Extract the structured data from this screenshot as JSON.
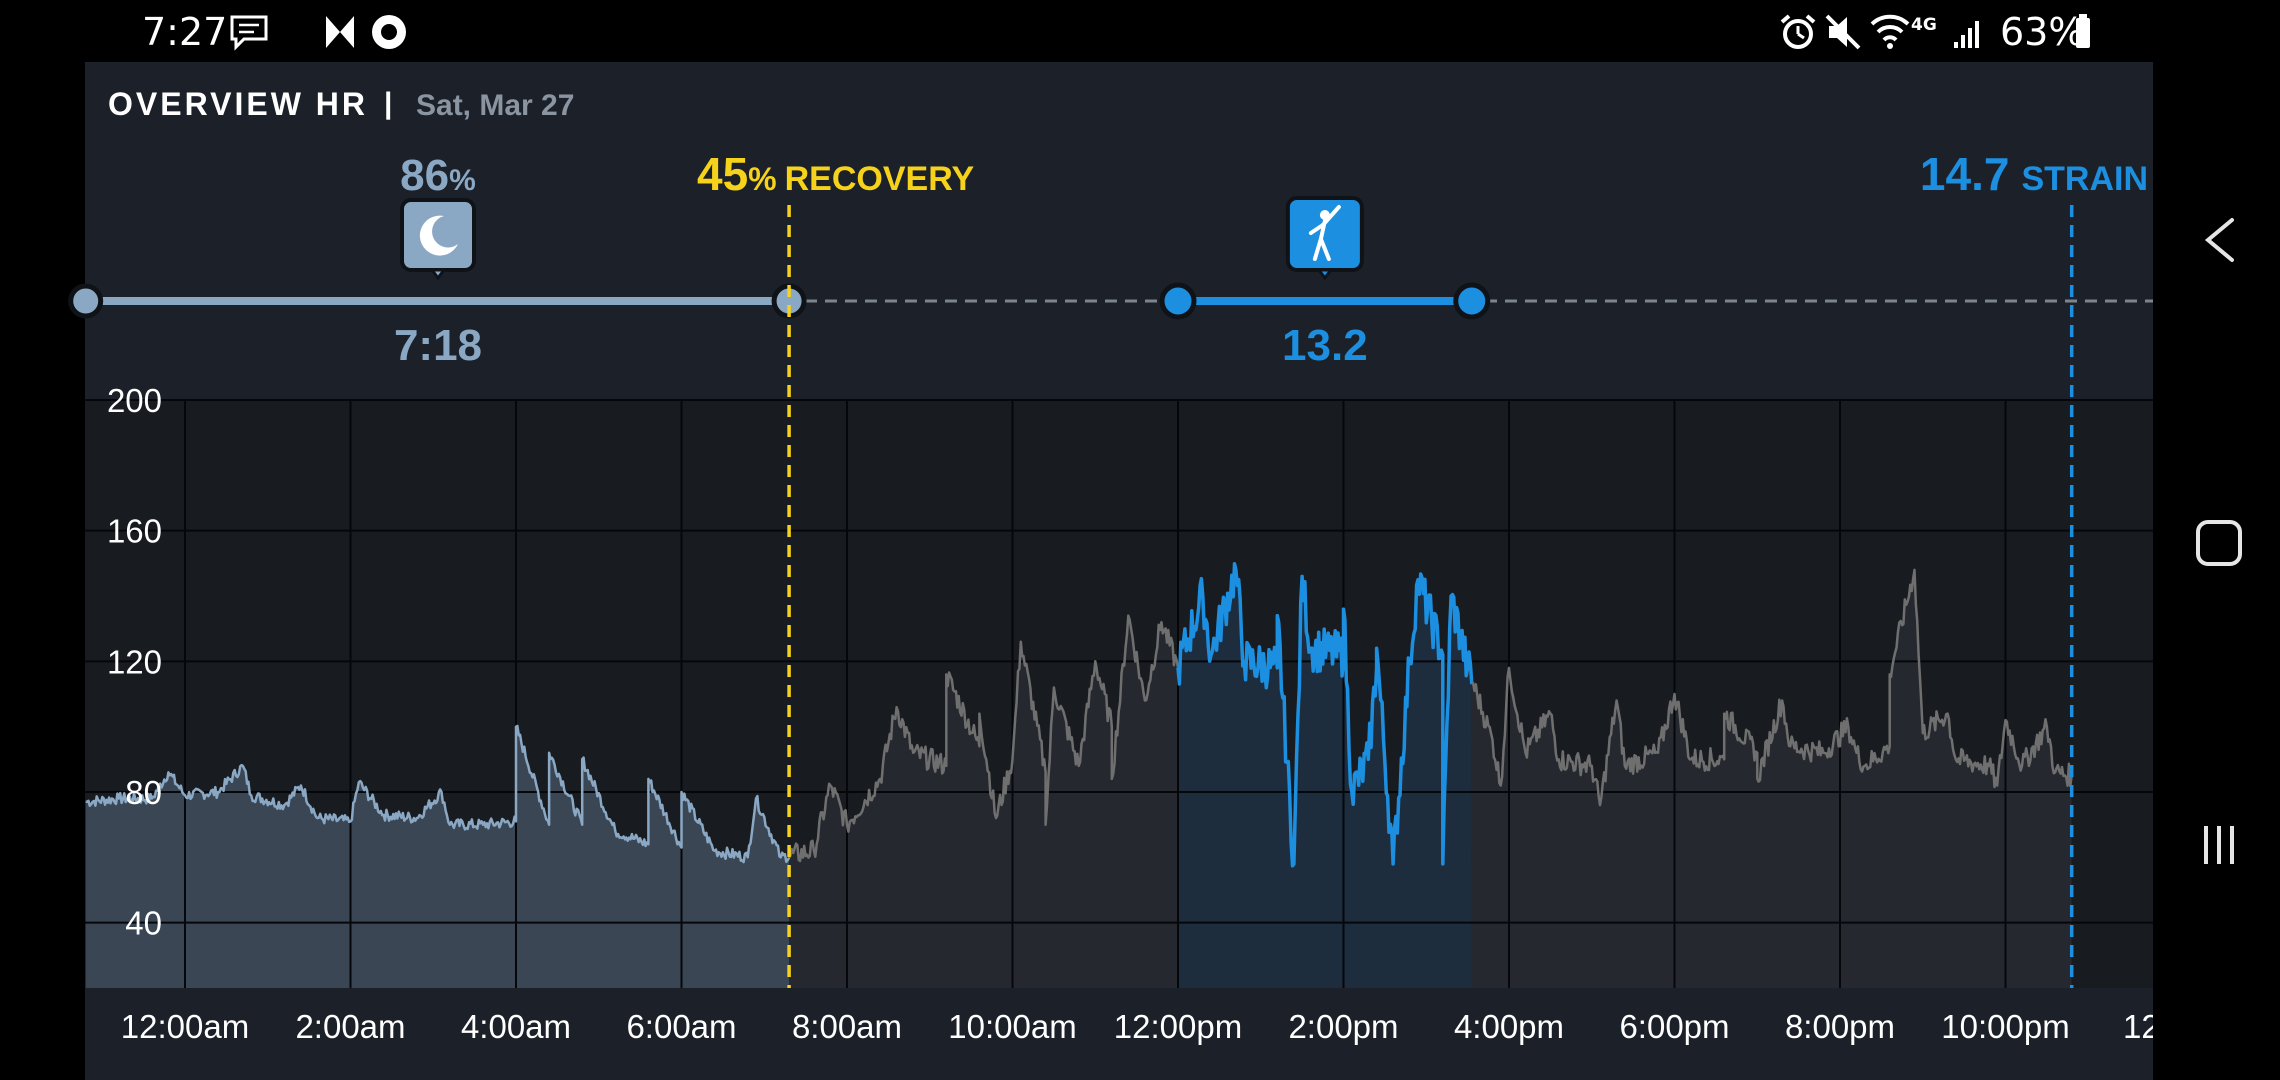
{
  "status_bar": {
    "time": "7:27",
    "battery": "63%",
    "network": "4G",
    "icons": [
      "message-icon",
      "mastodon-icon",
      "circle-app-icon",
      "alarm-icon",
      "mute-icon",
      "wifi-icon",
      "signal-icon",
      "battery-icon"
    ]
  },
  "header": {
    "title": "OVERVIEW HR",
    "separator": "|",
    "date": "Sat, Mar 27"
  },
  "sleep": {
    "score_value": "86",
    "score_unit": "%",
    "duration": "7:18",
    "icon": "moon-icon"
  },
  "recovery": {
    "value": "45",
    "unit": "%",
    "label": "RECOVERY"
  },
  "activity": {
    "strain": "13.2",
    "icon": "golf-icon"
  },
  "strain": {
    "value": "14.7",
    "label": "STRAIN"
  },
  "nav_bar": {
    "icons": [
      "back-icon",
      "home-icon",
      "recents-icon"
    ]
  },
  "colors": {
    "sleep": "#8aa8c4",
    "recovery": "#f7d21a",
    "strain": "#1c8fe0",
    "hr_line": "#6f6f6f",
    "background": "#1c2129"
  },
  "chart_data": {
    "type": "line",
    "title": "",
    "xlabel": "",
    "ylabel": "",
    "x_unit": "hours since midnight",
    "xlim": [
      -1.2,
      24.0
    ],
    "ylim": [
      20,
      200
    ],
    "y_ticks": [
      40,
      80,
      120,
      160,
      200
    ],
    "x_ticks": [
      {
        "t": 0,
        "label": "12:00am"
      },
      {
        "t": 2,
        "label": "2:00am"
      },
      {
        "t": 4,
        "label": "4:00am"
      },
      {
        "t": 6,
        "label": "6:00am"
      },
      {
        "t": 8,
        "label": "8:00am"
      },
      {
        "t": 10,
        "label": "10:00am"
      },
      {
        "t": 12,
        "label": "12:00pm"
      },
      {
        "t": 14,
        "label": "2:00pm"
      },
      {
        "t": 16,
        "label": "4:00pm"
      },
      {
        "t": 18,
        "label": "6:00pm"
      },
      {
        "t": 20,
        "label": "8:00pm"
      },
      {
        "t": 22,
        "label": "10:00pm"
      },
      {
        "t": 24,
        "label": "12:"
      }
    ],
    "grid": true,
    "markers": {
      "recovery_time": 7.3,
      "strain_time": 22.8
    },
    "segments": [
      {
        "name": "sleep",
        "start": -1.2,
        "end": 7.3
      },
      {
        "name": "activity",
        "start": 12.0,
        "end": 15.55
      }
    ],
    "series": [
      {
        "name": "heart rate",
        "points": [
          [
            -1.2,
            77
          ],
          [
            -0.8,
            78
          ],
          [
            -0.4,
            78
          ],
          [
            0.0,
            79
          ],
          [
            0.4,
            80
          ],
          [
            0.8,
            79
          ],
          [
            1.2,
            76
          ],
          [
            1.6,
            72
          ],
          [
            2.0,
            71
          ],
          [
            2.4,
            73
          ],
          [
            2.8,
            72
          ],
          [
            3.2,
            70
          ],
          [
            3.6,
            70
          ],
          [
            4.0,
            71
          ],
          [
            4.4,
            70
          ],
          [
            4.8,
            70
          ],
          [
            5.2,
            68
          ],
          [
            5.6,
            64
          ],
          [
            6.0,
            63
          ],
          [
            6.4,
            62
          ],
          [
            6.8,
            60
          ],
          [
            7.2,
            60
          ],
          [
            7.6,
            62
          ],
          [
            8.0,
            70
          ],
          [
            8.4,
            84
          ],
          [
            8.8,
            92
          ],
          [
            9.2,
            88
          ],
          [
            9.6,
            94
          ],
          [
            10.0,
            90
          ],
          [
            10.4,
            86
          ],
          [
            10.8,
            88
          ],
          [
            11.2,
            100
          ],
          [
            11.6,
            108
          ],
          [
            12.0,
            118
          ],
          [
            12.4,
            122
          ],
          [
            12.8,
            120
          ],
          [
            13.2,
            118
          ],
          [
            13.6,
            124
          ],
          [
            14.0,
            122
          ],
          [
            14.4,
            118
          ],
          [
            14.8,
            120
          ],
          [
            15.2,
            122
          ],
          [
            15.5,
            118
          ],
          [
            15.8,
            96
          ],
          [
            16.2,
            92
          ],
          [
            16.6,
            90
          ],
          [
            17.0,
            88
          ],
          [
            17.4,
            88
          ],
          [
            17.8,
            92
          ],
          [
            18.2,
            90
          ],
          [
            18.6,
            90
          ],
          [
            19.0,
            92
          ],
          [
            19.4,
            94
          ],
          [
            19.8,
            92
          ],
          [
            20.2,
            92
          ],
          [
            20.6,
            94
          ],
          [
            21.0,
            98
          ],
          [
            21.4,
            90
          ],
          [
            21.8,
            88
          ],
          [
            22.2,
            88
          ],
          [
            22.6,
            86
          ],
          [
            22.8,
            85
          ]
        ],
        "spikes": [
          [
            -0.2,
            86
          ],
          [
            0.7,
            88
          ],
          [
            1.4,
            82
          ],
          [
            2.1,
            83
          ],
          [
            3.1,
            80
          ],
          [
            4.0,
            100
          ],
          [
            4.4,
            92
          ],
          [
            4.8,
            90
          ],
          [
            5.6,
            84
          ],
          [
            6.0,
            80
          ],
          [
            6.9,
            78
          ],
          [
            7.8,
            82
          ],
          [
            8.6,
            106
          ],
          [
            9.2,
            116
          ],
          [
            9.6,
            104
          ],
          [
            10.1,
            126
          ],
          [
            10.5,
            112
          ],
          [
            11.0,
            120
          ],
          [
            11.4,
            134
          ],
          [
            11.8,
            132
          ],
          [
            12.3,
            140
          ],
          [
            12.7,
            148
          ],
          [
            13.2,
            134
          ],
          [
            13.5,
            146
          ],
          [
            14.0,
            136
          ],
          [
            14.4,
            124
          ],
          [
            14.9,
            145
          ],
          [
            15.3,
            140
          ],
          [
            16.0,
            118
          ],
          [
            16.5,
            104
          ],
          [
            17.3,
            108
          ],
          [
            18.0,
            110
          ],
          [
            18.6,
            104
          ],
          [
            19.3,
            108
          ],
          [
            20.1,
            100
          ],
          [
            20.6,
            116
          ],
          [
            20.9,
            148
          ],
          [
            21.3,
            104
          ],
          [
            22.0,
            102
          ],
          [
            22.5,
            100
          ]
        ],
        "dips": [
          [
            9.8,
            72
          ],
          [
            10.4,
            70
          ],
          [
            11.2,
            84
          ],
          [
            13.4,
            58
          ],
          [
            14.1,
            80
          ],
          [
            14.3,
            90
          ],
          [
            14.6,
            58
          ],
          [
            15.2,
            58
          ],
          [
            15.9,
            82
          ],
          [
            17.1,
            76
          ],
          [
            19.0,
            84
          ],
          [
            20.3,
            88
          ],
          [
            21.9,
            82
          ]
        ]
      }
    ]
  }
}
